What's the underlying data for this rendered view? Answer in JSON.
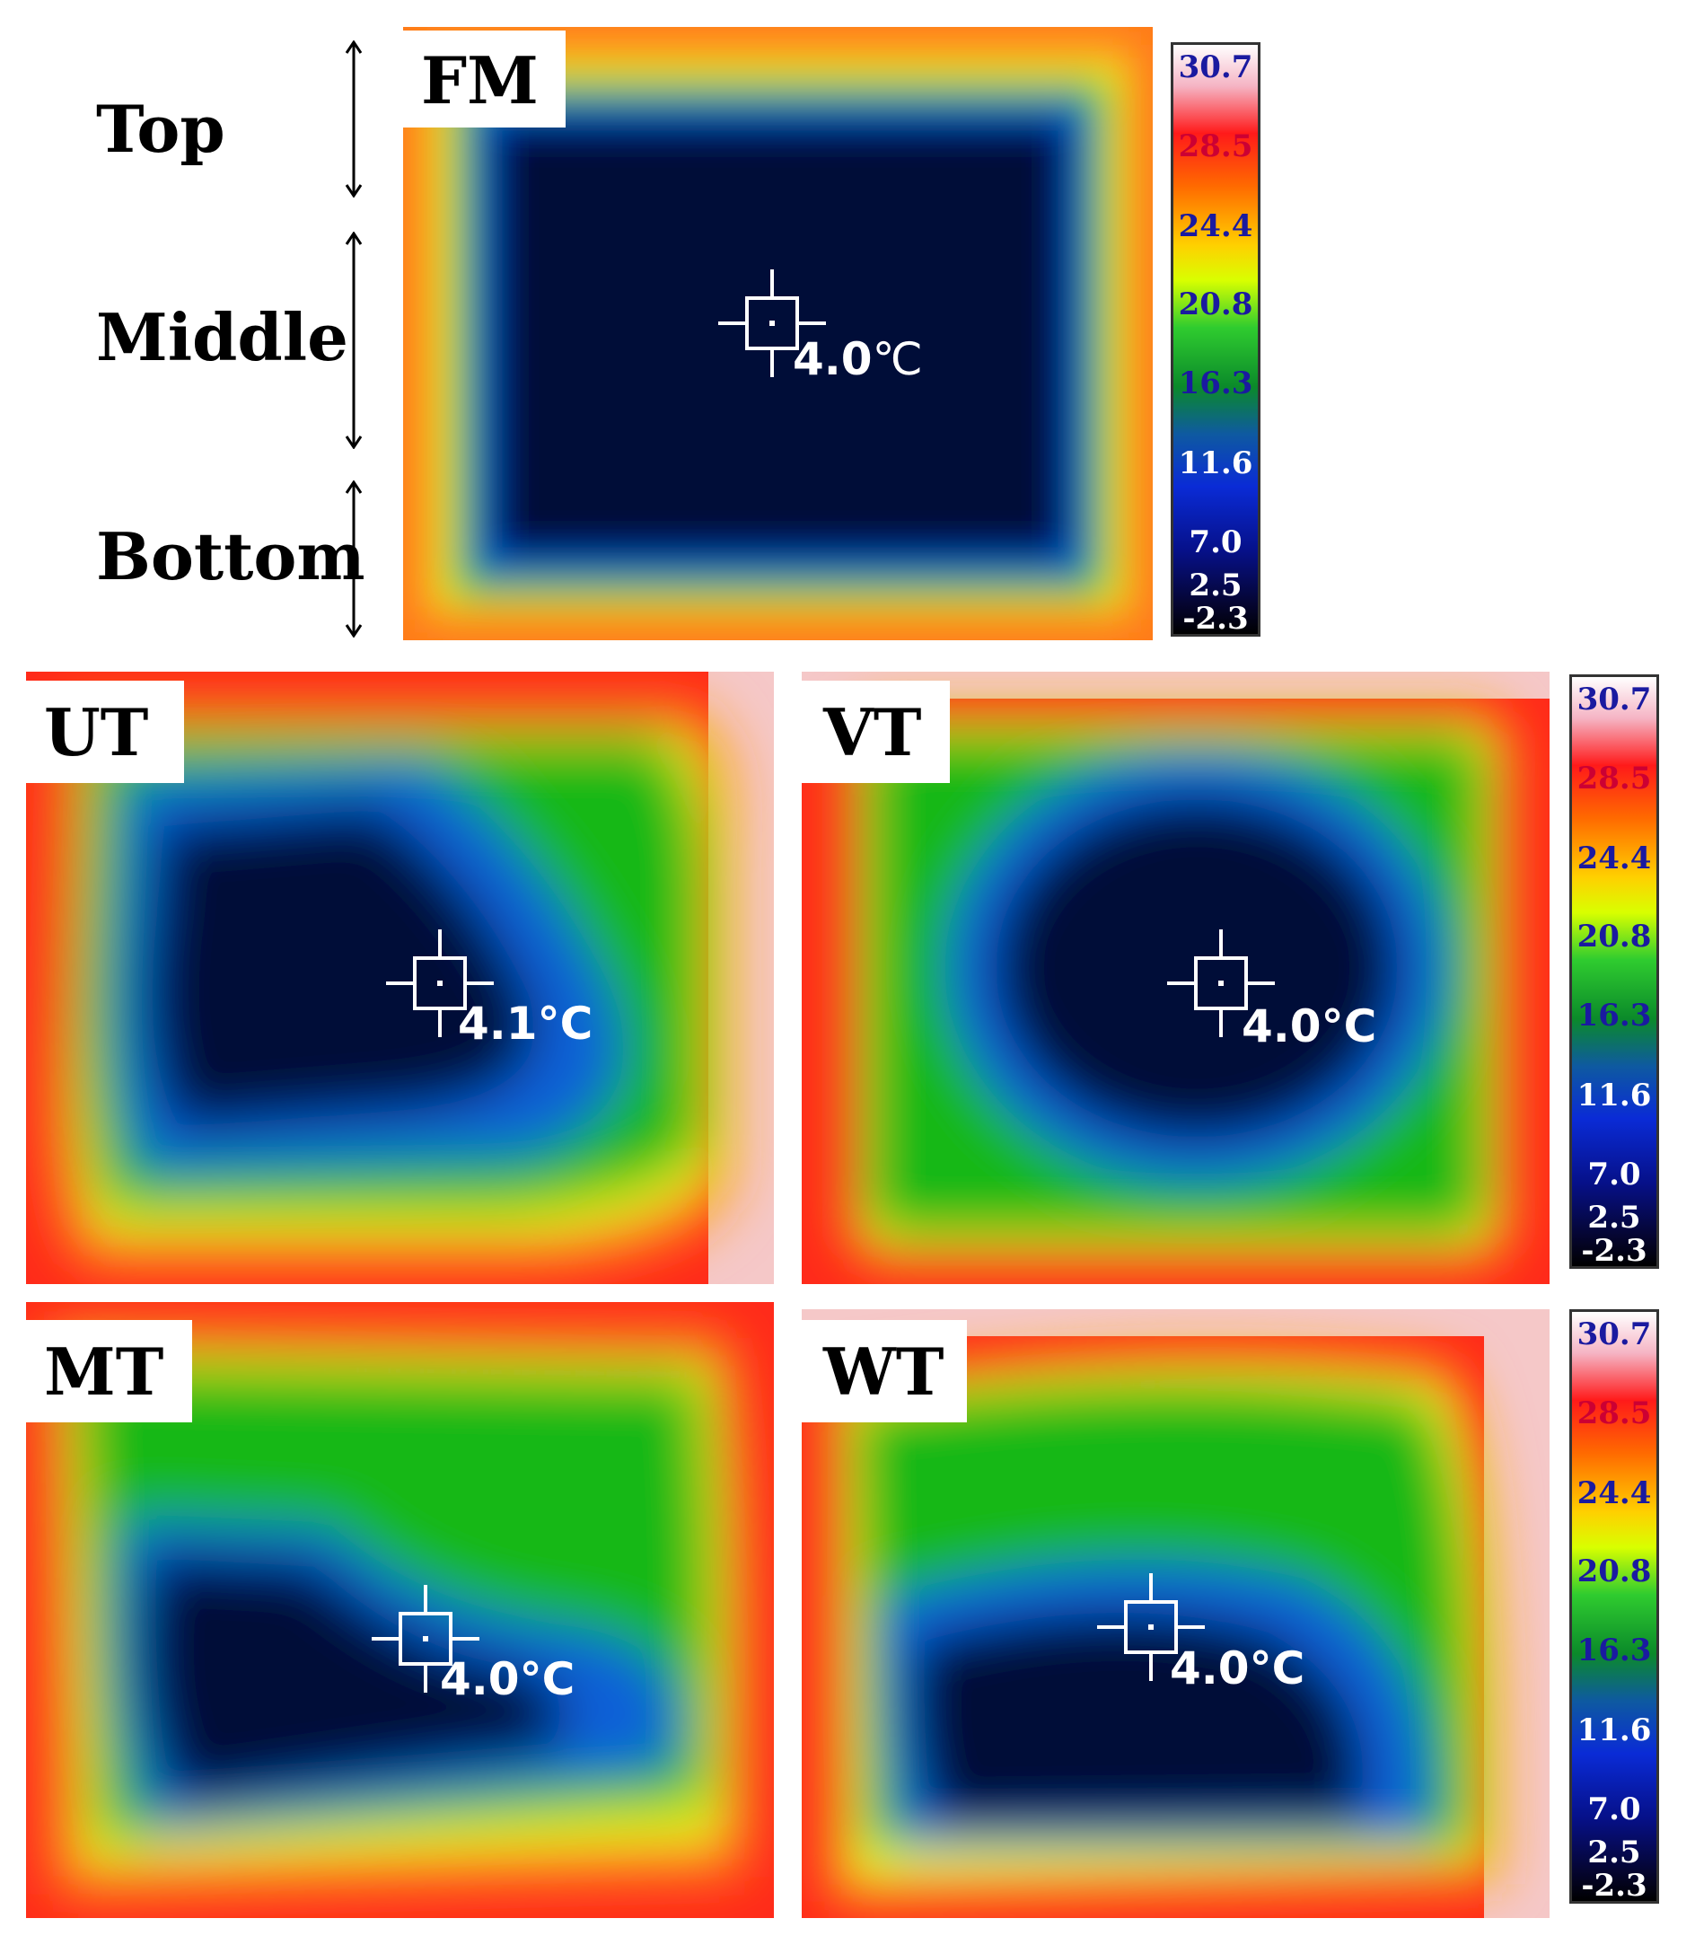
{
  "side_labels": [
    "Top",
    "Middle",
    "Bottom"
  ],
  "panels": [
    {
      "label": "FM",
      "reading": "4.0",
      "unit": "℃"
    },
    {
      "label": "UT",
      "reading": "4.1",
      "unit": "°C"
    },
    {
      "label": "VT",
      "reading": "4.0",
      "unit": "°C"
    },
    {
      "label": "MT",
      "reading": "4.0",
      "unit": "°C"
    },
    {
      "label": "WT",
      "reading": "4.0",
      "unit": "°C"
    }
  ],
  "color_scale": {
    "ticks": [
      "30.7",
      "28.5",
      "24.4",
      "20.8",
      "16.3",
      "11.6",
      "7.0",
      "2.5",
      "-2.3"
    ],
    "tick_colors": [
      "#1a1aa0",
      "#cc0033",
      "#1a1aa0",
      "#1a1aa0",
      "#1a1aa0",
      "#ffffff",
      "#ffffff",
      "#ffffff",
      "#ffffff"
    ]
  },
  "colors": {
    "hot": "#ff2a1a",
    "warm": "#ffd000",
    "mid": "#1fb51f",
    "cool": "#1060d8",
    "cold": "#060a30"
  }
}
